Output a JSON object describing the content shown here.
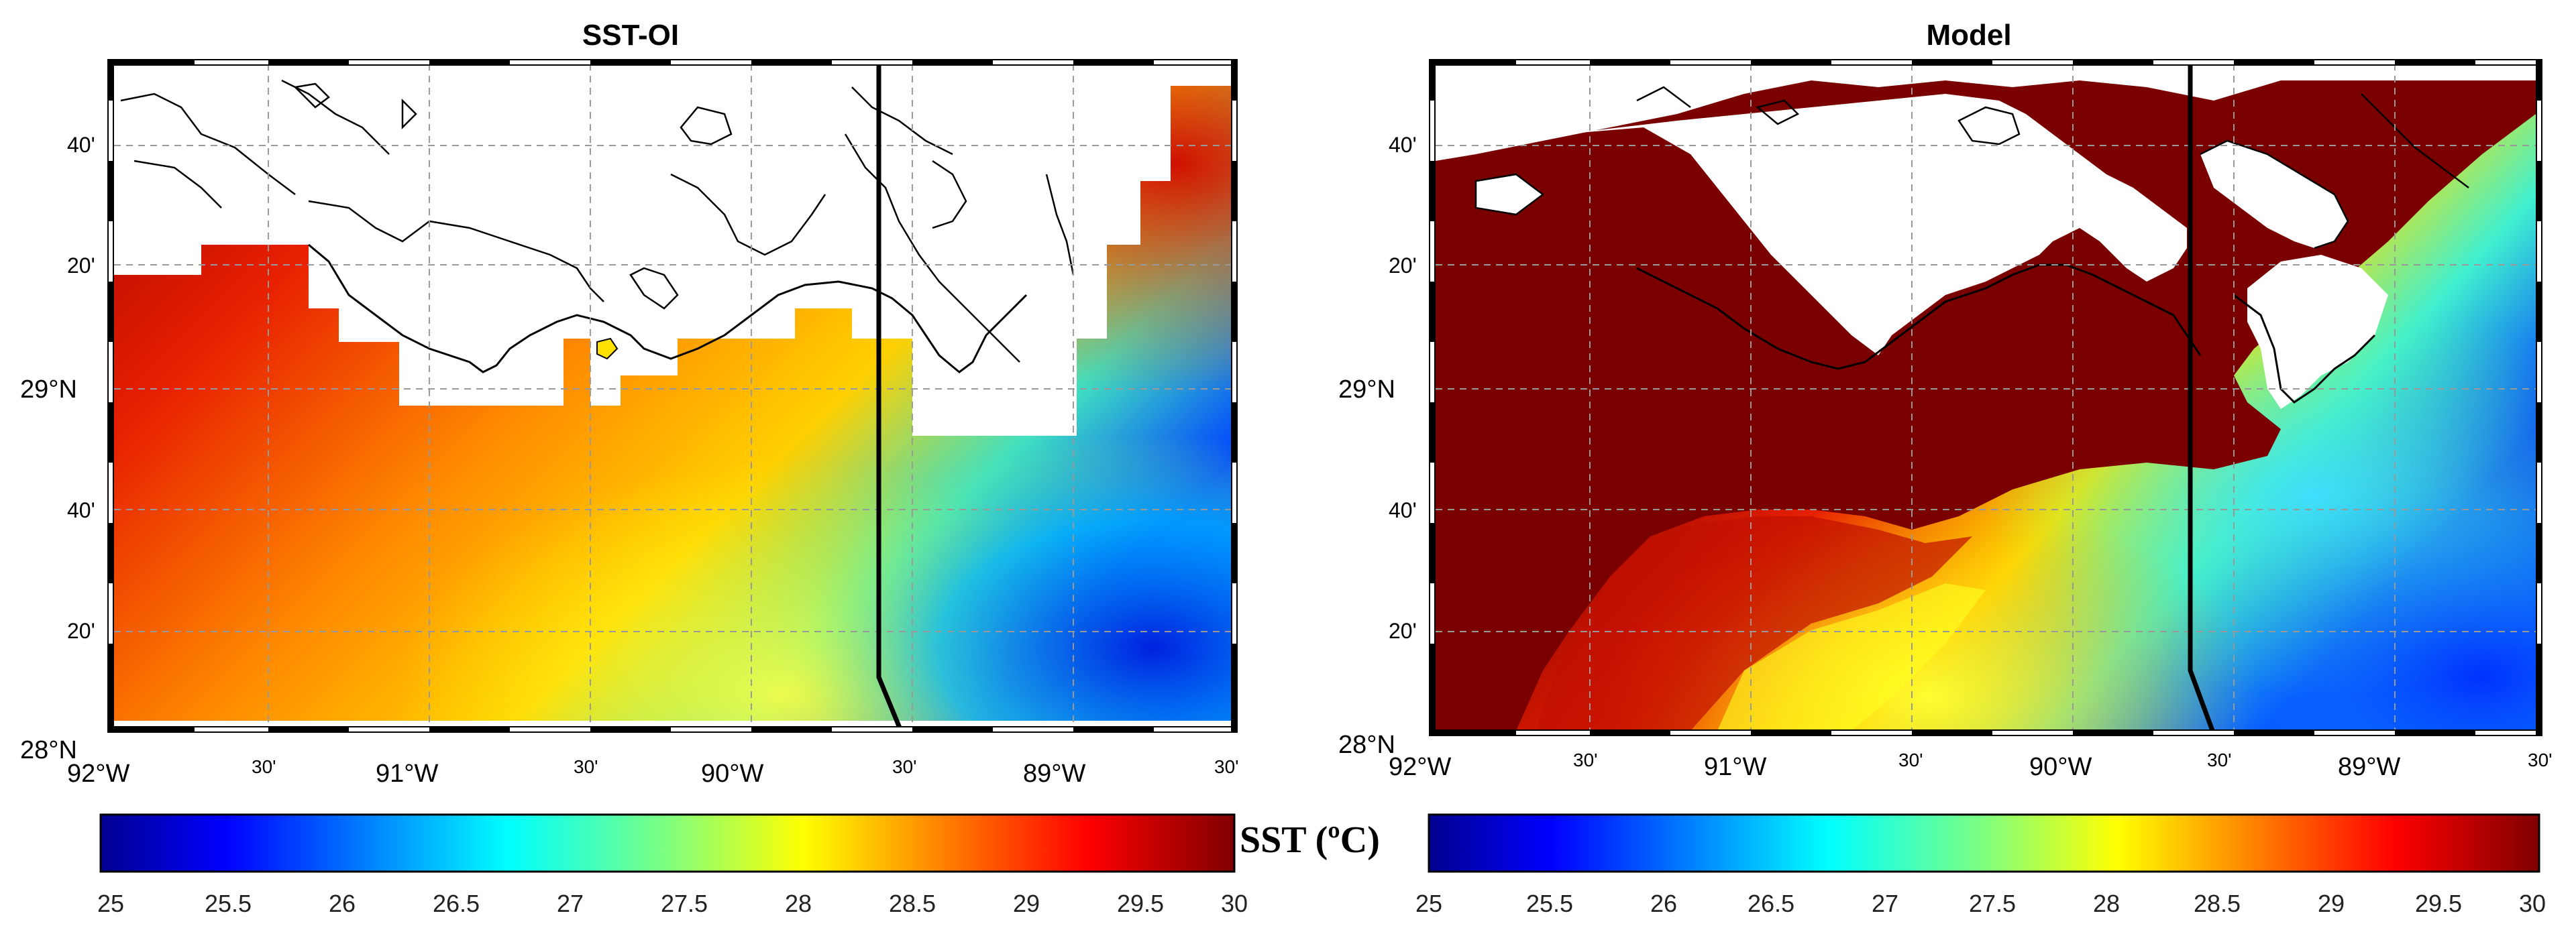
{
  "panels": [
    {
      "title": "SST-OI",
      "lat_labels": [
        "40'",
        "20'",
        "29°N",
        "40'",
        "20'",
        "28°N"
      ],
      "lon_labels": [
        "92°W",
        "30'",
        "91°W",
        "30'",
        "90°W",
        "30'",
        "89°W",
        "30'"
      ]
    },
    {
      "title": "Model",
      "lat_labels": [
        "40'",
        "20'",
        "29°N",
        "40'",
        "20'",
        "28°N"
      ],
      "lon_labels": [
        "92°W",
        "30'",
        "91°W",
        "30'",
        "90°W",
        "30'",
        "89°W",
        "30'"
      ]
    }
  ],
  "colorbar": {
    "label": "SST (ºC)",
    "ticks": [
      "25",
      "25.5",
      "26",
      "26.5",
      "27",
      "27.5",
      "28",
      "28.5",
      "29",
      "29.5",
      "30"
    ],
    "range": [
      25,
      30
    ],
    "colormap": "jet"
  },
  "colors": {
    "land": "#ffffff",
    "model_land_fill": "#7a0000",
    "frame": "#000000"
  }
}
